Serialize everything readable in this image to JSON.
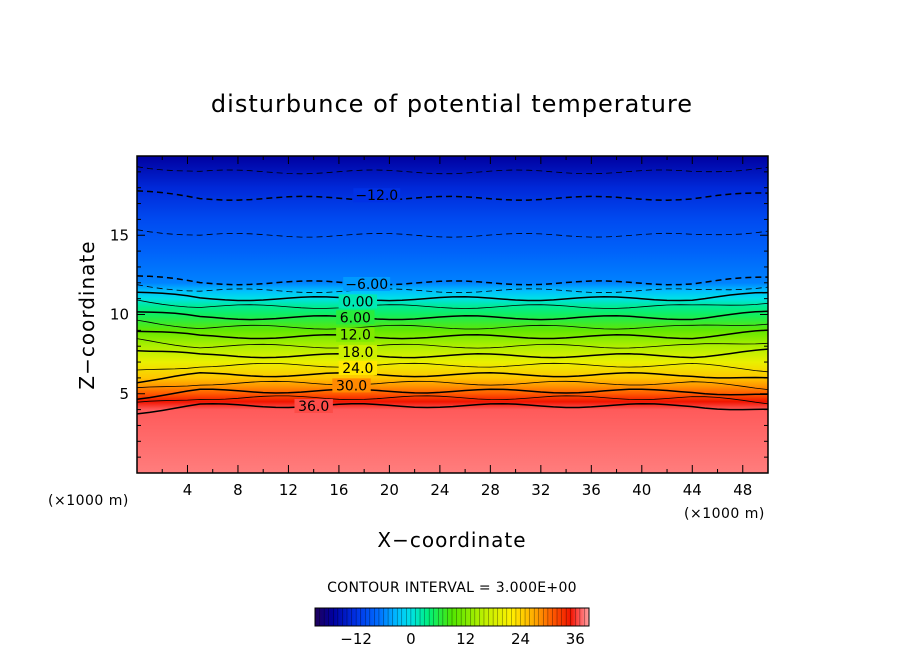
{
  "chart_data": {
    "type": "heatmap",
    "title": "disturbunce of potential temperature",
    "xlabel": "X−coordinate",
    "ylabel": "Z−coordinate",
    "x_unit": "(×1000 m)",
    "y_unit": "(×1000 m)",
    "xlim": [
      0,
      50
    ],
    "ylim": [
      0,
      20
    ],
    "x_ticks": [
      4,
      8,
      12,
      16,
      20,
      24,
      28,
      32,
      36,
      40,
      44,
      48
    ],
    "y_ticks": [
      5,
      10,
      15
    ],
    "contour_interval_text": "CONTOUR INTERVAL = 3.000E+00",
    "contour_interval": 3.0,
    "colorbar": {
      "range": [
        -21,
        39
      ],
      "ticks": [
        -12,
        0,
        12,
        24,
        36
      ],
      "tick_labels": [
        "−12",
        "0",
        "12",
        "24",
        "36"
      ]
    },
    "value_profile": {
      "z": [
        0,
        4.0,
        4.5,
        5.0,
        5.5,
        6.0,
        7.0,
        8.0,
        9.0,
        10.0,
        10.5,
        11.0,
        11.5,
        12.0,
        14.0,
        16.0,
        18.0,
        19.5,
        20.0
      ],
      "value": [
        38,
        37,
        35,
        31,
        28,
        25,
        20,
        15,
        10,
        5,
        3,
        0,
        -3,
        -6,
        -8,
        -10,
        -13,
        -16,
        -17
      ]
    },
    "contour_labels": [
      {
        "text": "−12.0",
        "x": 19.0,
        "z": 17.4
      },
      {
        "text": "−6.00",
        "x": 18.2,
        "z": 11.8
      },
      {
        "text": "0.00",
        "x": 17.5,
        "z": 10.7
      },
      {
        "text": "6.00",
        "x": 17.3,
        "z": 9.7
      },
      {
        "text": "12.0",
        "x": 17.3,
        "z": 8.6
      },
      {
        "text": "18.0",
        "x": 17.5,
        "z": 7.5
      },
      {
        "text": "24.0",
        "x": 17.5,
        "z": 6.5
      },
      {
        "text": "30.0",
        "x": 17.0,
        "z": 5.4
      },
      {
        "text": "36.0",
        "x": 14.0,
        "z": 4.1
      }
    ],
    "grid": false,
    "legend": "colorbar-bottom"
  }
}
